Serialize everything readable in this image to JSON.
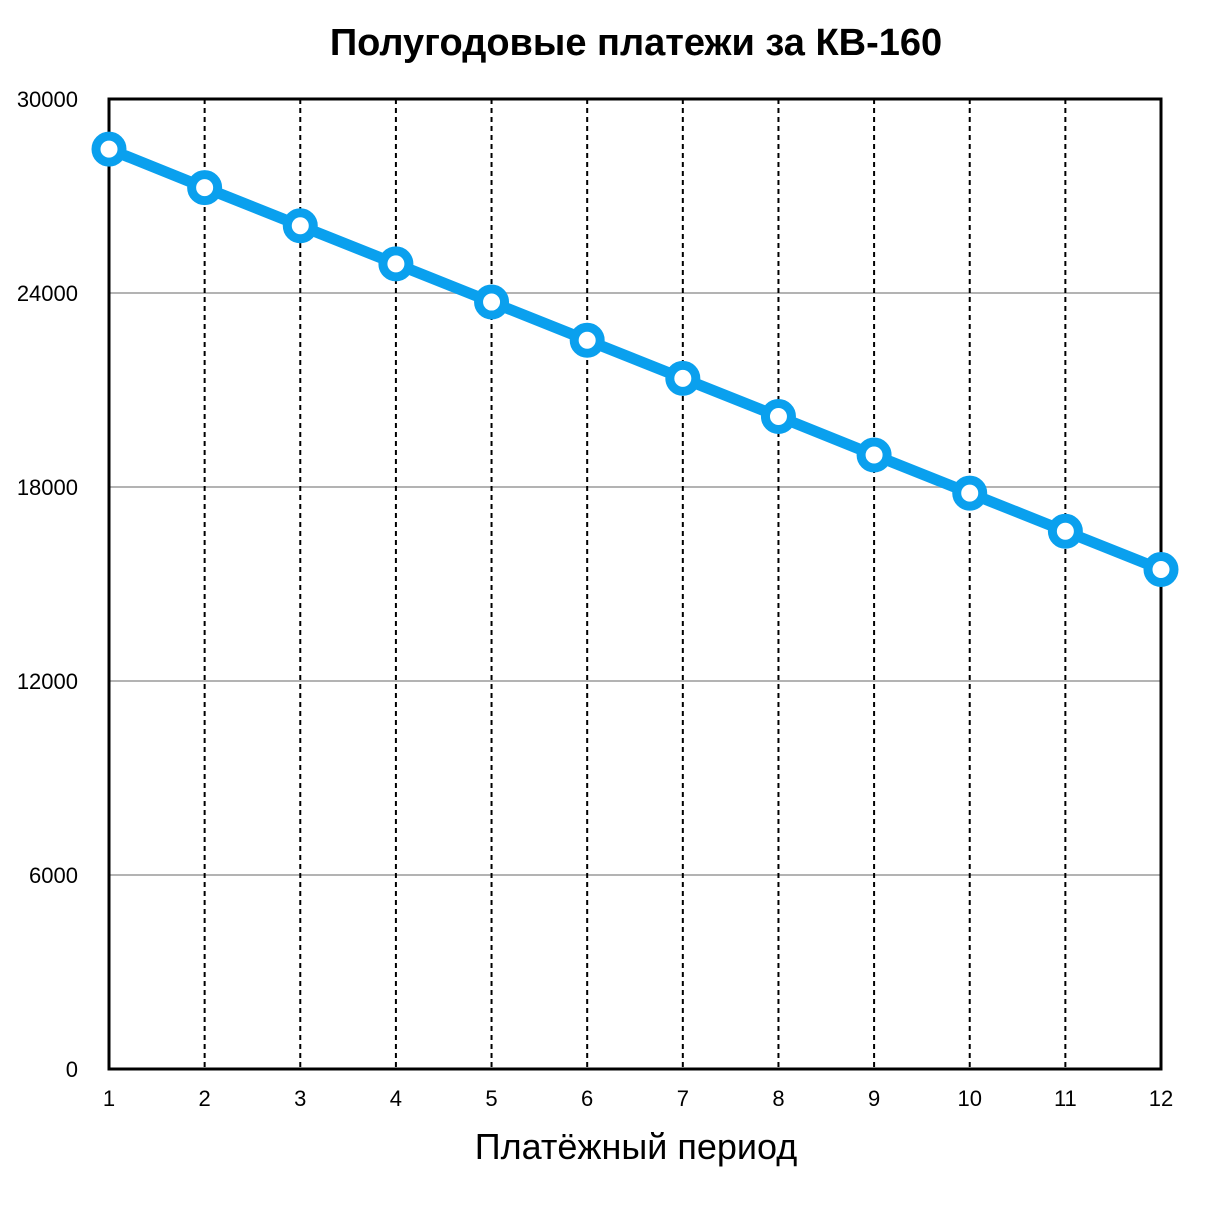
{
  "chart_data": {
    "type": "line",
    "title": "Полугодовые платежи за КВ-160",
    "xlabel": "Платёжный период",
    "ylabel": "",
    "x": [
      1,
      2,
      3,
      4,
      5,
      6,
      7,
      8,
      9,
      10,
      11,
      12
    ],
    "x_tick_labels": [
      "1",
      "2",
      "3",
      "4",
      "5",
      "6",
      "7",
      "8",
      "9",
      "10",
      "11",
      "12"
    ],
    "y_tick_labels": [
      "0",
      "6000",
      "12000",
      "18000",
      "24000",
      "30000"
    ],
    "y_ticks": [
      0,
      6000,
      12000,
      18000,
      24000,
      30000
    ],
    "ylim": [
      0,
      30000
    ],
    "xlim": [
      1,
      12
    ],
    "grid": {
      "horizontal": "solid gray",
      "vertical": "dashed black"
    },
    "series": [
      {
        "color": "#0aa0ee",
        "values": [
          28450,
          27260,
          26080,
          24900,
          23720,
          22540,
          21360,
          20180,
          18990,
          17810,
          16630,
          15450
        ]
      }
    ]
  }
}
